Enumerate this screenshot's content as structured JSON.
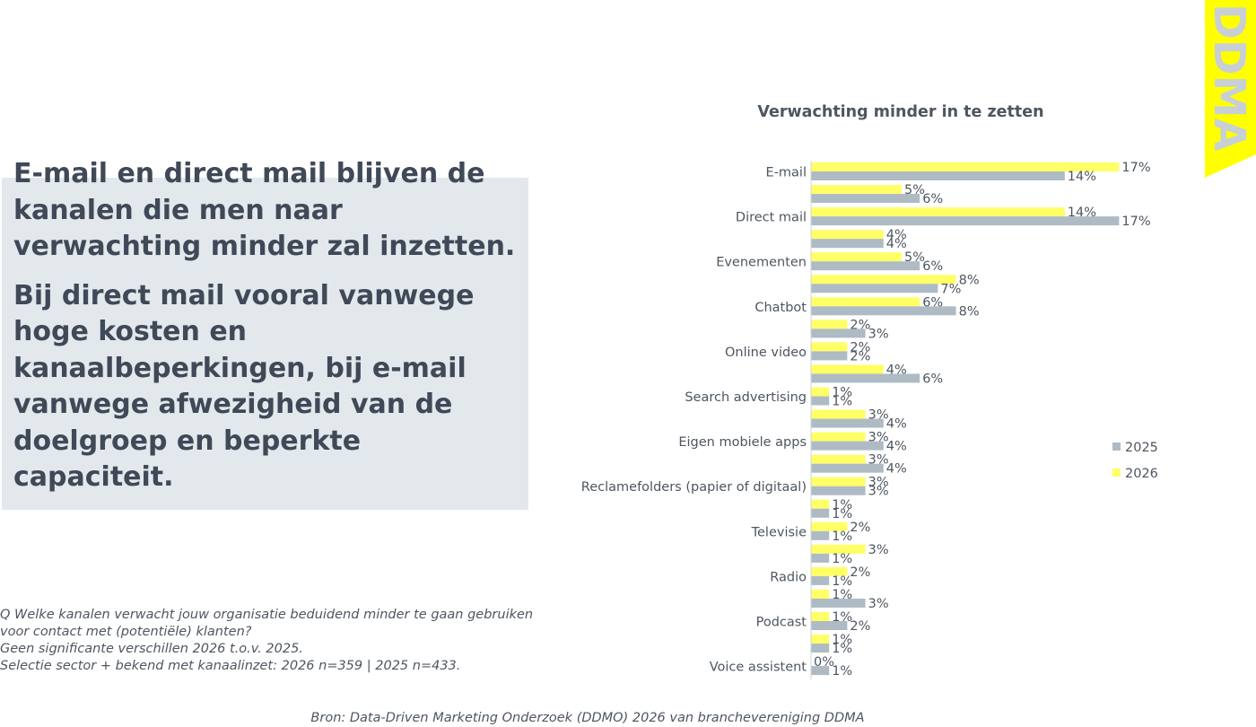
{
  "headline": {
    "line1": "E-mail en direct mail blijven de kanalen die men naar verwachting minder zal inzetten.",
    "line2": "Bij direct mail vooral vanwege hoge kosten en kanaalbeperkingen, bij e-mail vanwege afwezigheid van de doelgroep en beperkte capaciteit."
  },
  "footnote": {
    "question_line1": "Q  Welke kanalen verwacht jouw organisatie beduidend minder te gaan gebruiken",
    "question_line2": "voor contact met (potentiële) klanten?",
    "significance": "Geen significante verschillen 2026 t.o.v. 2025.",
    "selection": "Selectie sector + bekend met kanaalinzet: 2026 n=359 | 2025 n=433."
  },
  "source": "Bron: Data-Driven Marketing Onderzoek (DDMO) 2026 van branchevereniging DDMA",
  "logo": {
    "text": "DDMA",
    "background": "#ffff00",
    "letter_color": "#c8d0d5"
  },
  "colors": {
    "series_2026": "#ffff66",
    "series_2025": "#aebbc4",
    "text": "#4e5660"
  },
  "chart_data": {
    "type": "bar",
    "orientation": "horizontal",
    "title": "Verwachting minder in te zetten",
    "value_format": "percent",
    "categories_labeled": [
      "E-mail",
      "Direct mail",
      "Evenementen",
      "Chatbot",
      "Online video",
      "Search advertising",
      "Eigen mobiele apps",
      "Reclamefolders (papier of digitaal)",
      "Televisie",
      "Radio",
      "Podcast",
      "Voice assistent"
    ],
    "rows": [
      {
        "label": "E-mail",
        "v2026": 17,
        "v2025": 14
      },
      {
        "label": "",
        "v2026": 5,
        "v2025": 6
      },
      {
        "label": "Direct mail",
        "v2026": 14,
        "v2025": 17
      },
      {
        "label": "",
        "v2026": 4,
        "v2025": 4
      },
      {
        "label": "Evenementen",
        "v2026": 5,
        "v2025": 6
      },
      {
        "label": "",
        "v2026": 8,
        "v2025": 7
      },
      {
        "label": "Chatbot",
        "v2026": 6,
        "v2025": 8
      },
      {
        "label": "",
        "v2026": 2,
        "v2025": 3
      },
      {
        "label": "Online video",
        "v2026": 2,
        "v2025": 2
      },
      {
        "label": "",
        "v2026": 4,
        "v2025": 6
      },
      {
        "label": "Search advertising",
        "v2026": 1,
        "v2025": 1
      },
      {
        "label": "",
        "v2026": 3,
        "v2025": 4
      },
      {
        "label": "Eigen mobiele apps",
        "v2026": 3,
        "v2025": 4
      },
      {
        "label": "",
        "v2026": 3,
        "v2025": 4
      },
      {
        "label": "Reclamefolders (papier of digitaal)",
        "v2026": 3,
        "v2025": 3
      },
      {
        "label": "",
        "v2026": 1,
        "v2025": 1
      },
      {
        "label": "Televisie",
        "v2026": 2,
        "v2025": 1
      },
      {
        "label": "",
        "v2026": 3,
        "v2025": 1
      },
      {
        "label": "Radio",
        "v2026": 2,
        "v2025": 1
      },
      {
        "label": "",
        "v2026": 1,
        "v2025": 3
      },
      {
        "label": "Podcast",
        "v2026": 1,
        "v2025": 2
      },
      {
        "label": "",
        "v2026": 1,
        "v2025": 1
      },
      {
        "label": "Voice assistent",
        "v2026": 0,
        "v2025": 1
      }
    ],
    "series": [
      {
        "name": "2026",
        "key": "v2026",
        "color": "#ffff66"
      },
      {
        "name": "2025",
        "key": "v2025",
        "color": "#aebbc4"
      }
    ],
    "legend": {
      "items": [
        "2025",
        "2026"
      ],
      "placement": "right"
    },
    "xlim": [
      0,
      17
    ],
    "grid": false
  }
}
